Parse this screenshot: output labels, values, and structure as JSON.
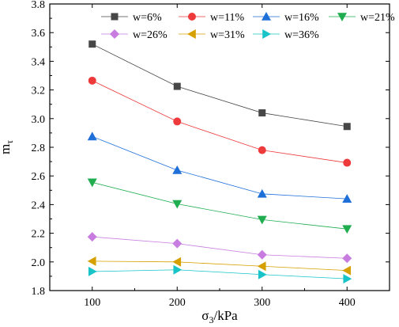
{
  "chart_data": {
    "type": "line",
    "xlabel": "σ3/kPa",
    "ylabel": "mτ",
    "x": [
      100,
      200,
      300,
      400
    ],
    "xlim": [
      50,
      450
    ],
    "ylim": [
      1.8,
      3.8
    ],
    "xticks": [
      100,
      200,
      300,
      400
    ],
    "yticks": [
      1.8,
      2.0,
      2.2,
      2.4,
      2.6,
      2.8,
      3.0,
      3.2,
      3.4,
      3.6,
      3.8
    ],
    "grid": false,
    "legend_position": "top-right",
    "series": [
      {
        "name": "w=6%",
        "marker": "square",
        "color": "#474747",
        "values": [
          3.52,
          3.225,
          3.04,
          2.945
        ]
      },
      {
        "name": "w=11%",
        "marker": "circle",
        "color": "#ee3a3a",
        "values": [
          3.265,
          2.98,
          2.78,
          2.692
        ]
      },
      {
        "name": "w=16%",
        "marker": "triangle-up",
        "color": "#1f6fd9",
        "values": [
          2.875,
          2.64,
          2.475,
          2.44
        ]
      },
      {
        "name": "w=21%",
        "marker": "triangle-down",
        "color": "#1fad4f",
        "values": [
          2.555,
          2.405,
          2.295,
          2.23
        ]
      },
      {
        "name": "w=26%",
        "marker": "diamond",
        "color": "#c87ce0",
        "values": [
          2.175,
          2.128,
          2.05,
          2.025
        ]
      },
      {
        "name": "w=31%",
        "marker": "triangle-left",
        "color": "#d6a000",
        "values": [
          2.005,
          2.0,
          1.97,
          1.94
        ]
      },
      {
        "name": "w=36%",
        "marker": "triangle-right",
        "color": "#18c4c8",
        "values": [
          1.933,
          1.945,
          1.912,
          1.882
        ]
      }
    ]
  }
}
